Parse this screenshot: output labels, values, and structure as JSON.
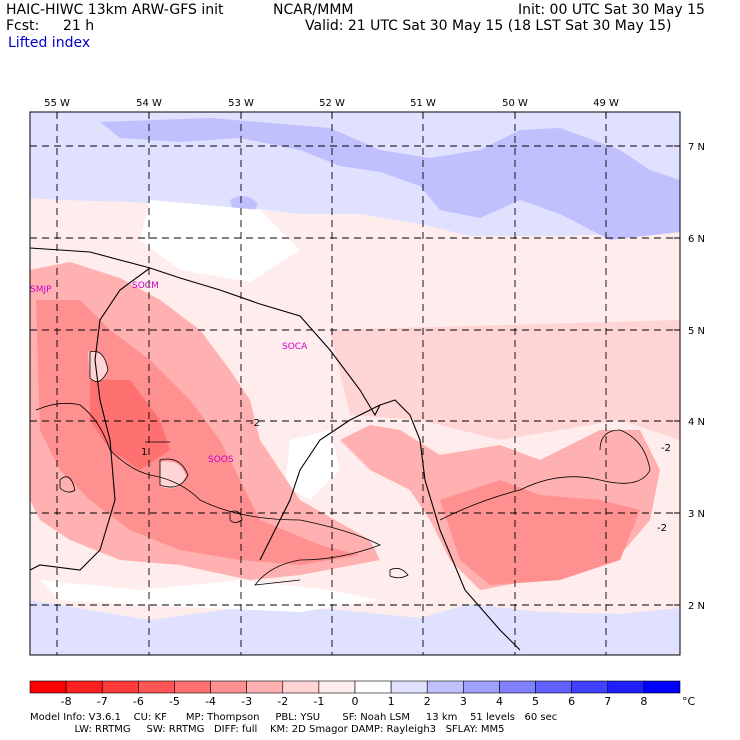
{
  "header": {
    "model_title": "HAIC-HIWC 13km ARW-GFS init",
    "org": "NCAR/MMM",
    "init": "Init: 00 UTC Sat 30 May 15",
    "fcst_label": "Fcst:",
    "fcst_value": "21 h",
    "valid": "Valid: 21 UTC Sat 30 May 15 (18 LST Sat 30 May 15)",
    "field": "Lifted index"
  },
  "axes": {
    "longitudes": [
      "55 W",
      "54 W",
      "53 W",
      "52 W",
      "51 W",
      "50 W",
      "49 W"
    ],
    "latitudes": [
      "7 N",
      "6 N",
      "5 N",
      "4 N",
      "3 N",
      "2 N"
    ]
  },
  "stations": [
    "SMJP",
    "SOCM",
    "SOCA",
    "SOOS"
  ],
  "contour_labels": [
    "-2",
    "-2",
    "-2",
    "1"
  ],
  "colorbar": {
    "ticks": [
      "-8",
      "-7",
      "-6",
      "-5",
      "-4",
      "-3",
      "-2",
      "-1",
      "0",
      "1",
      "2",
      "3",
      "4",
      "5",
      "6",
      "7",
      "8"
    ],
    "unit": "°C",
    "colors": [
      "#ff0000",
      "#ff2020",
      "#ff3a3a",
      "#ff5555",
      "#ff7070",
      "#ff9090",
      "#ffb0b0",
      "#ffd4d4",
      "#ffecec",
      "#ffffff",
      "#e0e0ff",
      "#c0c0ff",
      "#a0a0ff",
      "#8080ff",
      "#6060ff",
      "#4040ff",
      "#2020ff",
      "#0000ff"
    ]
  },
  "footer": {
    "line1": "Model Info: V3.6.1    CU: KF      MP: Thompson     PBL: YSU       SF: Noah LSM     13 km    51 levels   60 sec",
    "line2": "              LW: RRTMG     SW: RRTMG   DIFF: full    KM: 2D Smagor DAMP: Rayleigh3   SFLAY: MM5"
  }
}
